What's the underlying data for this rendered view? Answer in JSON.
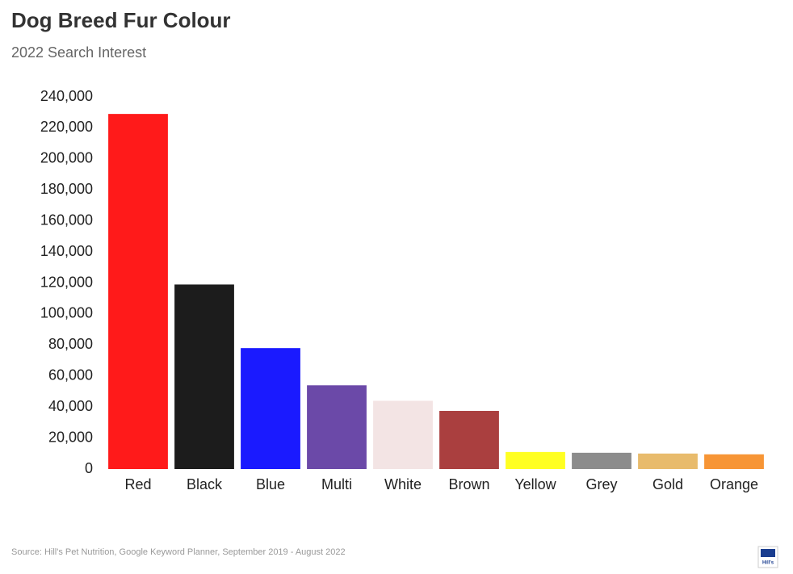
{
  "chart_data": {
    "type": "bar",
    "title": "Dog Breed Fur Colour",
    "subtitle": "2022 Search Interest",
    "categories": [
      "Red",
      "Black",
      "Blue",
      "Multi",
      "White",
      "Brown",
      "Yellow",
      "Grey",
      "Gold",
      "Orange"
    ],
    "values": [
      229000,
      119000,
      78000,
      54000,
      44000,
      37500,
      11000,
      10500,
      10000,
      9500
    ],
    "colors": [
      "#ff1a1a",
      "#1c1c1c",
      "#1a1aff",
      "#6b49a8",
      "#f3e4e4",
      "#aa3f3f",
      "#ffff22",
      "#8c8c8c",
      "#e8bb6c",
      "#f79535"
    ],
    "ylim": [
      0,
      240000
    ],
    "yticks": [
      0,
      {
        "value": 20000,
        "label": "20,000"
      },
      {
        "value": 40000,
        "label": "40,000"
      },
      {
        "value": 60000,
        "label": "60,000"
      },
      {
        "value": 80000,
        "label": "80,000"
      },
      {
        "value": 100000,
        "label": "100,000"
      },
      {
        "value": 120000,
        "label": "120,000"
      },
      {
        "value": 140000,
        "label": "140,000"
      },
      {
        "value": 160000,
        "label": "160,000"
      },
      {
        "value": 180000,
        "label": "180,000"
      },
      {
        "value": 200000,
        "label": "200,000"
      },
      {
        "value": 220000,
        "label": "220,000"
      },
      {
        "value": 240000,
        "label": "240,000"
      }
    ],
    "grid": false,
    "source": "Source: Hill's Pet Nutrition, Google Keyword Planner, September 2019 - August 2022",
    "logo": "Hill's"
  }
}
